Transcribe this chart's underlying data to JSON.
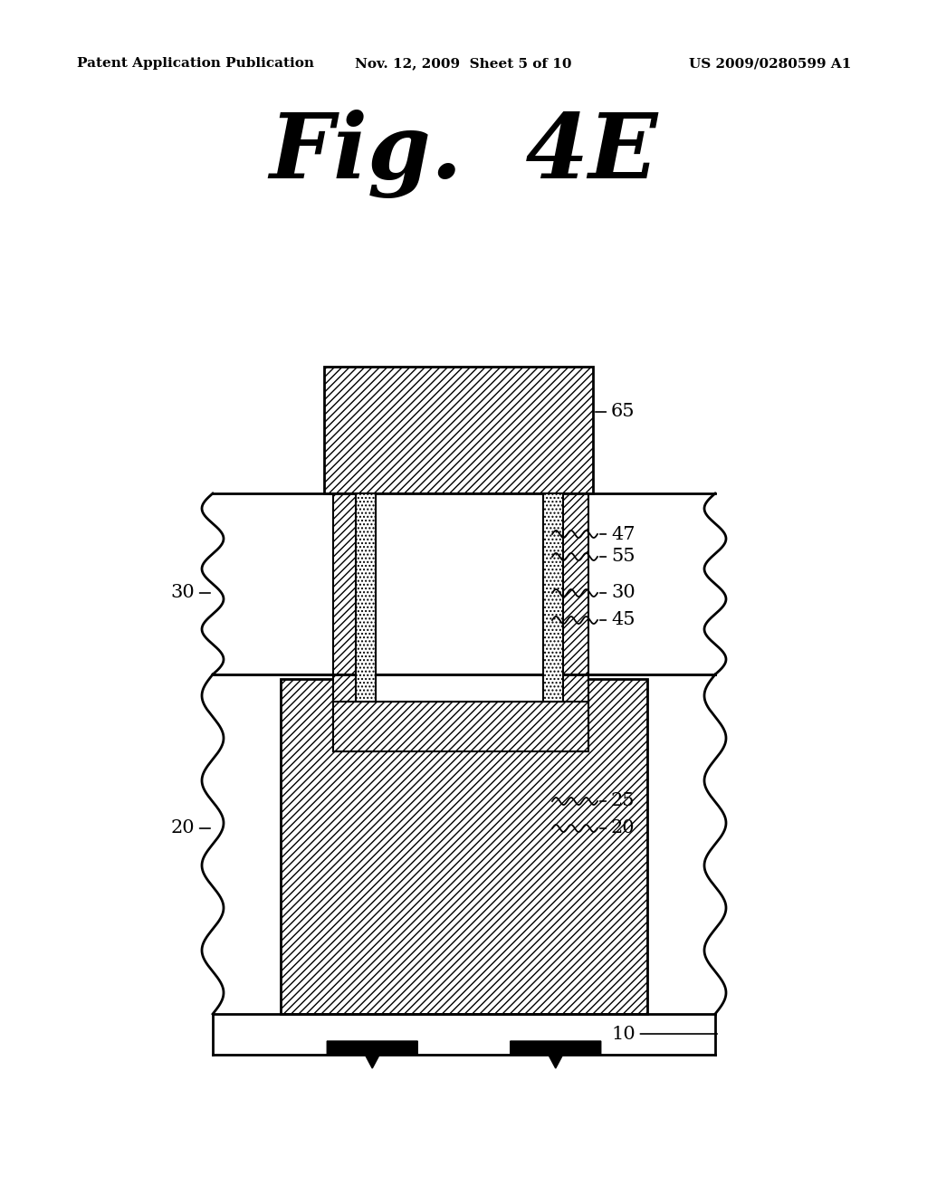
{
  "title": "Fig.  4E",
  "header_left": "Patent Application Publication",
  "header_middle": "Nov. 12, 2009  Sheet 5 of 10",
  "header_right": "US 2009/0280599 A1",
  "bg_color": "#ffffff",
  "line_color": "#000000",
  "fig_width": 10.24,
  "fig_height": 13.2,
  "dpi": 100
}
